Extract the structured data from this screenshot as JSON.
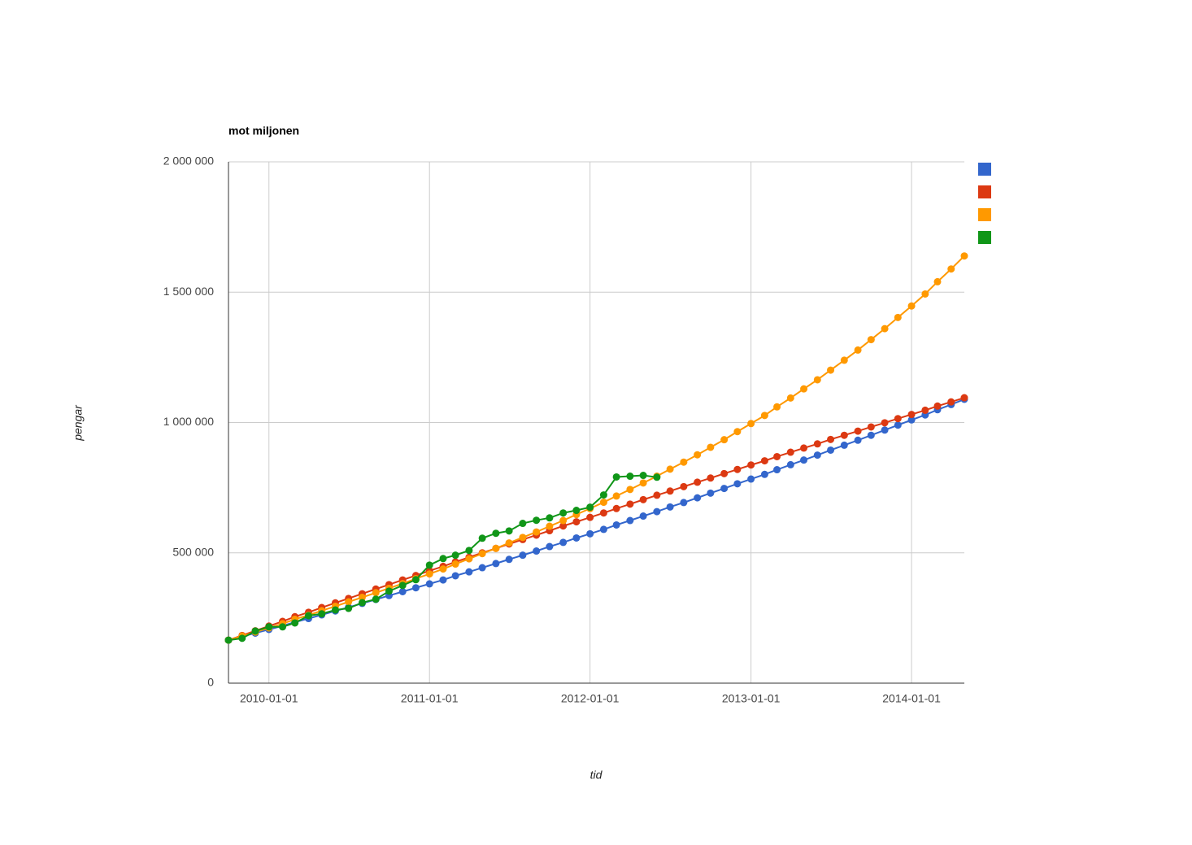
{
  "chart_data": {
    "type": "line",
    "title": "mot miljonen",
    "x_label": "tid",
    "y_label": "pengar",
    "x": [
      "2009-10-01",
      "2009-11-01",
      "2009-12-01",
      "2010-01-01",
      "2010-02-01",
      "2010-03-01",
      "2010-04-01",
      "2010-05-01",
      "2010-06-01",
      "2010-07-01",
      "2010-08-01",
      "2010-09-01",
      "2010-10-01",
      "2010-11-01",
      "2010-12-01",
      "2011-01-01",
      "2011-02-01",
      "2011-03-01",
      "2011-04-01",
      "2011-05-01",
      "2011-06-01",
      "2011-07-01",
      "2011-08-01",
      "2011-09-01",
      "2011-10-01",
      "2011-11-01",
      "2011-12-01",
      "2012-01-01",
      "2012-02-01",
      "2012-03-01",
      "2012-04-01",
      "2012-05-01",
      "2012-06-01",
      "2012-07-01",
      "2012-08-01",
      "2012-09-01",
      "2012-10-01",
      "2012-11-01",
      "2012-12-01",
      "2013-01-01",
      "2013-02-01",
      "2013-03-01",
      "2013-04-01",
      "2013-05-01",
      "2013-06-01",
      "2013-07-01",
      "2013-08-01",
      "2013-09-01",
      "2013-10-01",
      "2013-11-01",
      "2013-12-01",
      "2014-01-01",
      "2014-02-01",
      "2014-03-01",
      "2014-04-01",
      "2014-05-01"
    ],
    "xlim": [
      "2009-10-01",
      "2014-05-01"
    ],
    "xticks": [
      "2010-01-01",
      "2011-01-01",
      "2012-01-01",
      "2013-01-01",
      "2014-01-01"
    ],
    "ylim": [
      0,
      2000000
    ],
    "yticks": [
      0,
      {
        "value": 500000,
        "label": "500 000"
      },
      {
        "value": 1000000,
        "label": "1 000 000"
      },
      {
        "value": 1500000,
        "label": "1 500 000"
      },
      {
        "value": 2000000,
        "label": "2 000 000"
      }
    ],
    "grid": true,
    "legend": "right",
    "series": [
      {
        "color": "#3366cc",
        "values": [
          165000,
          179000,
          192000,
          206000,
          220000,
          234000,
          248000,
          262000,
          277000,
          291000,
          306000,
          321000,
          336000,
          351000,
          366000,
          381000,
          396000,
          412000,
          427000,
          443000,
          459000,
          475000,
          491000,
          507000,
          524000,
          540000,
          557000,
          573000,
          590000,
          607000,
          624000,
          641000,
          658000,
          676000,
          693000,
          711000,
          729000,
          747000,
          765000,
          783000,
          801000,
          819000,
          838000,
          856000,
          875000,
          894000,
          913000,
          932000,
          951000,
          971000,
          990000,
          1010000,
          1029000,
          1049000,
          1069000,
          1089000
        ]
      },
      {
        "color": "#dc3912",
        "values": [
          165000,
          183000,
          201000,
          219000,
          237000,
          255000,
          272000,
          290000,
          308000,
          325000,
          343000,
          361000,
          378000,
          396000,
          413000,
          431000,
          448000,
          465000,
          483000,
          500000,
          517000,
          534000,
          551000,
          568000,
          585000,
          603000,
          619000,
          636000,
          653000,
          670000,
          687000,
          704000,
          721000,
          737000,
          754000,
          771000,
          787000,
          804000,
          820000,
          837000,
          853000,
          869000,
          886000,
          902000,
          918000,
          935000,
          951000,
          967000,
          983000,
          999000,
          1015000,
          1031000,
          1047000,
          1063000,
          1079000,
          1095000
        ]
      },
      {
        "color": "#ff9900",
        "values": [
          165000,
          181000,
          196000,
          212000,
          228000,
          245000,
          261000,
          278000,
          295000,
          312000,
          329000,
          347000,
          364000,
          382000,
          401000,
          419000,
          438000,
          457000,
          477000,
          497000,
          517000,
          538000,
          559000,
          580000,
          602000,
          624000,
          647000,
          670000,
          694000,
          718000,
          743000,
          768000,
          794000,
          821000,
          848000,
          876000,
          905000,
          934000,
          965000,
          996000,
          1027000,
          1060000,
          1094000,
          1129000,
          1164000,
          1201000,
          1239000,
          1278000,
          1318000,
          1360000,
          1403000,
          1447000,
          1493000,
          1540000,
          1589000,
          1639000
        ]
      },
      {
        "color": "#109618",
        "values": [
          165000,
          172000,
          200000,
          216000,
          216000,
          231000,
          259000,
          266000,
          281000,
          287000,
          309000,
          322000,
          353000,
          375000,
          397000,
          453000,
          478000,
          491000,
          509000,
          556000,
          575000,
          584000,
          613000,
          625000,
          634000,
          653000,
          663000,
          675000,
          722000,
          791000,
          794000,
          797000,
          790000,
          null,
          null,
          null,
          null,
          null,
          null,
          null,
          null,
          null,
          null,
          null,
          null,
          null,
          null,
          null,
          null,
          null,
          null,
          null,
          null,
          null,
          null,
          null
        ]
      }
    ]
  }
}
